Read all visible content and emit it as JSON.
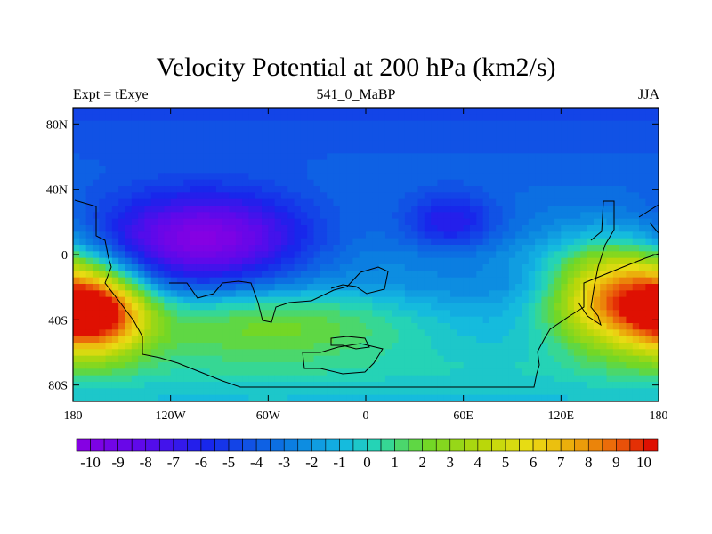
{
  "chart_data": {
    "type": "heatmap",
    "title": "Velocity Potential at 200 hPa (km2/s)",
    "left_label": "Expt = tExye",
    "center_label": "541_0_MaBP",
    "right_label": "JJA",
    "x_ticks": [
      "180",
      "120W",
      "60W",
      "0",
      "60E",
      "120E",
      "180"
    ],
    "x_tick_values": [
      -180,
      -120,
      -60,
      0,
      60,
      120,
      180
    ],
    "y_ticks": [
      "80N",
      "40N",
      "0",
      "40S",
      "80S"
    ],
    "y_tick_values": [
      80,
      40,
      0,
      -40,
      -80
    ],
    "xlim": [
      -180,
      180
    ],
    "ylim": [
      -90,
      90
    ],
    "colorbar": {
      "labels": [
        "-10",
        "-9",
        "-8",
        "-7",
        "-6",
        "-5",
        "-4",
        "-3",
        "-2",
        "-1",
        "0",
        "1",
        "2",
        "3",
        "4",
        "5",
        "6",
        "7",
        "8",
        "9",
        "10"
      ],
      "min": -10.5,
      "max": 10.5,
      "levels": 42
    },
    "field_features": [
      {
        "lon": -100,
        "lat": 8,
        "value": -9.5,
        "spread_lon": 45,
        "spread_lat": 20
      },
      {
        "lon": 52,
        "lat": 20,
        "value": -5.5,
        "spread_lon": 20,
        "spread_lat": 12
      },
      {
        "lon": -165,
        "lat": -35,
        "value": 9.5,
        "spread_lon": 22,
        "spread_lat": 18
      },
      {
        "lon": 155,
        "lat": -25,
        "value": 9.5,
        "spread_lon": 30,
        "spread_lat": 22
      },
      {
        "lon": -60,
        "lat": -40,
        "value": 3.0,
        "spread_lon": 70,
        "spread_lat": 18
      }
    ]
  }
}
